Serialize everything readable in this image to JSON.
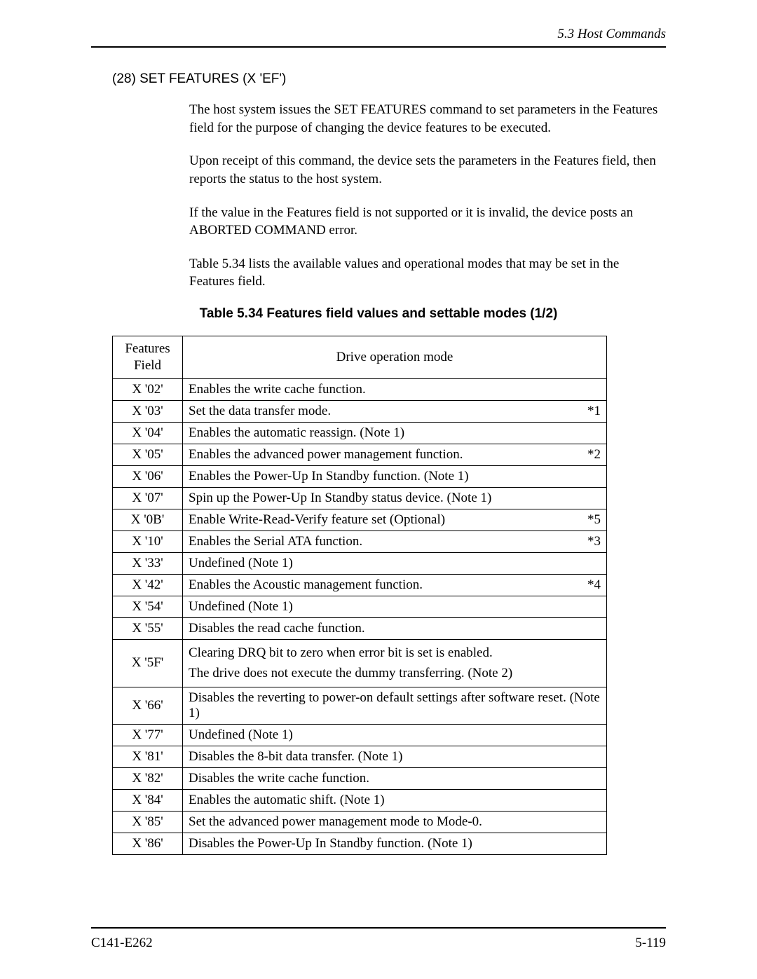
{
  "header": {
    "running_head": "5.3  Host Commands"
  },
  "section": {
    "heading": "(28)   SET FEATURES (X 'EF')",
    "paragraphs": [
      "The host system issues the SET FEATURES command to set parameters in the Features field for the purpose of changing the device features to be executed.",
      "Upon receipt of this command, the device sets the parameters in the Features field, then reports the status to the host system.",
      "If the value in the Features field is not supported or it is invalid, the device posts an ABORTED COMMAND error.",
      "Table 5.34 lists the available values and operational modes that may be set in the Features field."
    ]
  },
  "table": {
    "caption": "Table 5.34  Features field values and settable modes (1/2)",
    "head_col1": "Features\nField",
    "head_col2": "Drive operation mode",
    "rows": [
      {
        "feat": "X '02'",
        "desc": "Enables the write cache function.",
        "mark": ""
      },
      {
        "feat": "X '03'",
        "desc": "Set the data transfer mode.",
        "mark": "*1"
      },
      {
        "feat": "X '04'",
        "desc": "Enables the automatic reassign.  (Note 1)",
        "mark": ""
      },
      {
        "feat": "X '05'",
        "desc": "Enables the advanced power management function.",
        "mark": "*2"
      },
      {
        "feat": "X '06'",
        "desc": "Enables the Power-Up In Standby function. (Note 1)",
        "mark": ""
      },
      {
        "feat": "X '07'",
        "desc": "Spin up the Power-Up In Standby status device. (Note 1)",
        "mark": ""
      },
      {
        "feat": "X '0B'",
        "desc": "Enable Write-Read-Verify feature set (Optional)",
        "mark": "*5"
      },
      {
        "feat": "X '10'",
        "desc": "Enables the Serial ATA function.",
        "mark": "*3"
      },
      {
        "feat": "X '33'",
        "desc": "Undefined  (Note 1)",
        "mark": ""
      },
      {
        "feat": "X '42'",
        "desc": "Enables the Acoustic management function.",
        "mark": "*4"
      },
      {
        "feat": "X '54'",
        "desc": "Undefined (Note 1)",
        "mark": ""
      },
      {
        "feat": "X '55'",
        "desc": "Disables the read cache function.",
        "mark": ""
      },
      {
        "feat": "X '5F'",
        "desc": "Clearing DRQ bit to zero when error bit is set is enabled.\nThe drive does not execute the dummy transferring. (Note 2)",
        "mark": ""
      },
      {
        "feat": "X '66'",
        "desc": "Disables the reverting to power-on default settings after software reset.  (Note 1)",
        "mark": ""
      },
      {
        "feat": "X '77'",
        "desc": "Undefined  (Note 1)",
        "mark": ""
      },
      {
        "feat": "X '81'",
        "desc": "Disables the 8-bit data transfer. (Note 1)",
        "mark": ""
      },
      {
        "feat": "X '82'",
        "desc": "Disables the write cache function.",
        "mark": ""
      },
      {
        "feat": "X '84'",
        "desc": "Enables the automatic shift. (Note 1)",
        "mark": ""
      },
      {
        "feat": "X '85'",
        "desc": "Set the advanced power management mode to Mode-0.",
        "mark": ""
      },
      {
        "feat": "X '86'",
        "desc": "Disables the Power-Up In Standby function. (Note 1)",
        "mark": ""
      }
    ]
  },
  "footer": {
    "left": "C141-E262",
    "right": "5-119"
  }
}
